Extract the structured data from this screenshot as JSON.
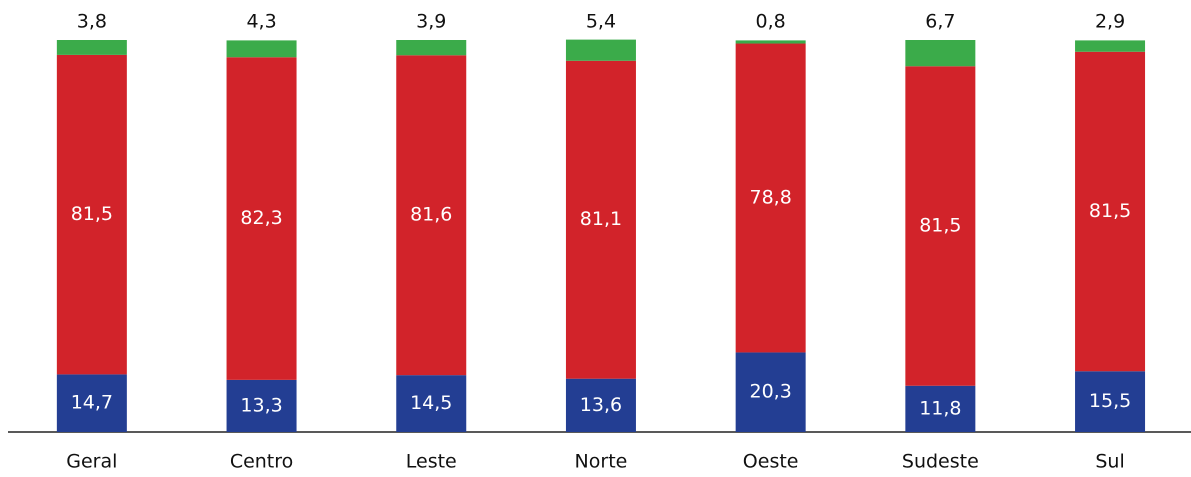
{
  "chart_data": {
    "type": "stacked_bar",
    "categories": [
      "Geral",
      "Centro",
      "Leste",
      "Norte",
      "Oeste",
      "Sudeste",
      "Sul"
    ],
    "series": [
      {
        "color": "#233e93",
        "values": [
          14.7,
          13.3,
          14.5,
          13.6,
          20.3,
          11.8,
          15.5
        ],
        "value_labels": [
          "14,7",
          "13,3",
          "14,5",
          "13,6",
          "20,3",
          "11,8",
          "15,5"
        ]
      },
      {
        "color": "#d2232a",
        "values": [
          81.5,
          82.3,
          81.6,
          81.1,
          78.8,
          81.5,
          81.5
        ],
        "value_labels": [
          "81,5",
          "82,3",
          "81,6",
          "81,1",
          "78,8",
          "81,5",
          "81,5"
        ]
      },
      {
        "color": "#3bab4a",
        "values": [
          3.8,
          4.3,
          3.9,
          5.4,
          0.8,
          6.7,
          2.9
        ],
        "value_labels": [
          "3,8",
          "4,3",
          "3,9",
          "5,4",
          "0,8",
          "6,7",
          "2,9"
        ]
      }
    ],
    "ylim": [
      0,
      100
    ]
  }
}
